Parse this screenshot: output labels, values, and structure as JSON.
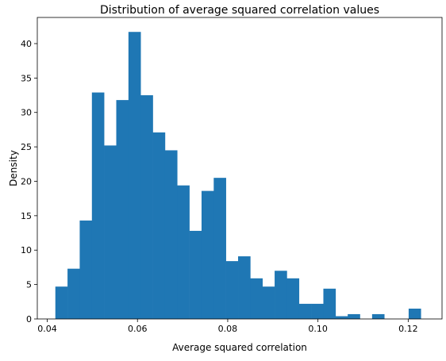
{
  "chart_data": {
    "type": "bar",
    "title": "Distribution of average squared correlation values",
    "xlabel": "Average squared correlation",
    "ylabel": "Density",
    "xlim": [
      0.0378,
      0.1275
    ],
    "ylim": [
      0,
      43.8
    ],
    "x_ticks": [
      0.04,
      0.06,
      0.08,
      0.1,
      0.12
    ],
    "x_tick_labels": [
      "0.04",
      "0.06",
      "0.08",
      "0.10",
      "0.12"
    ],
    "y_ticks": [
      0,
      5,
      10,
      15,
      20,
      25,
      30,
      35,
      40
    ],
    "y_tick_labels": [
      "0",
      "5",
      "10",
      "15",
      "20",
      "25",
      "30",
      "35",
      "40"
    ],
    "bin_edges": [
      0.0418,
      0.0445,
      0.0472,
      0.0499,
      0.0526,
      0.0553,
      0.058,
      0.0607,
      0.0634,
      0.0661,
      0.0688,
      0.0715,
      0.0742,
      0.0769,
      0.0796,
      0.0823,
      0.085,
      0.0877,
      0.0904,
      0.0931,
      0.0958,
      0.0985,
      0.1012,
      0.1039,
      0.1066,
      0.1093,
      0.112,
      0.1147,
      0.1174,
      0.1201,
      0.1228
    ],
    "values": [
      4.7,
      7.3,
      14.3,
      32.9,
      25.2,
      31.8,
      41.7,
      32.5,
      27.1,
      24.5,
      19.4,
      12.8,
      18.6,
      20.5,
      8.4,
      9.1,
      5.9,
      4.7,
      7.0,
      5.9,
      2.2,
      2.2,
      4.4,
      0.4,
      0.7,
      0.0,
      0.7,
      0.0,
      0.0,
      1.5
    ],
    "grid": false,
    "bar_color": "#1f77b4"
  }
}
